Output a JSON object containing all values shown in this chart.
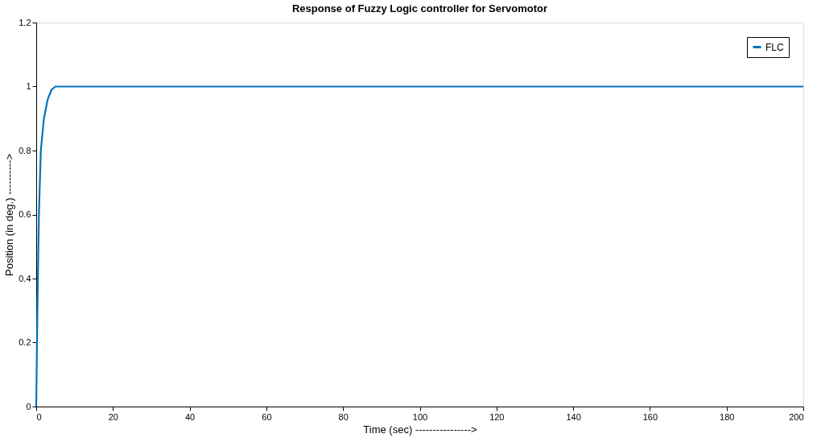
{
  "chart_data": {
    "type": "line",
    "title": "Response of Fuzzy Logic controller for Servomotor",
    "xlabel": "Time (sec) ---------------->",
    "ylabel": "Position (in deg.) ---------->",
    "series": [
      {
        "name": "FLC",
        "color": "#0072bd",
        "x": [
          0,
          0.3,
          0.7,
          1.2,
          2,
          3,
          4,
          5,
          6,
          200
        ],
        "values": [
          0,
          0.3,
          0.6,
          0.8,
          0.9,
          0.96,
          0.99,
          1,
          1,
          1
        ]
      }
    ],
    "xlim": [
      0,
      200
    ],
    "xticks": [
      0,
      20,
      40,
      60,
      80,
      100,
      120,
      140,
      160,
      180,
      200
    ],
    "ylim": [
      0,
      1.2
    ],
    "yticks": [
      0,
      0.2,
      0.4,
      0.6,
      0.8,
      1,
      1.2
    ],
    "grid": false,
    "legend": "top right",
    "marker": "none",
    "line_style": "solid"
  }
}
